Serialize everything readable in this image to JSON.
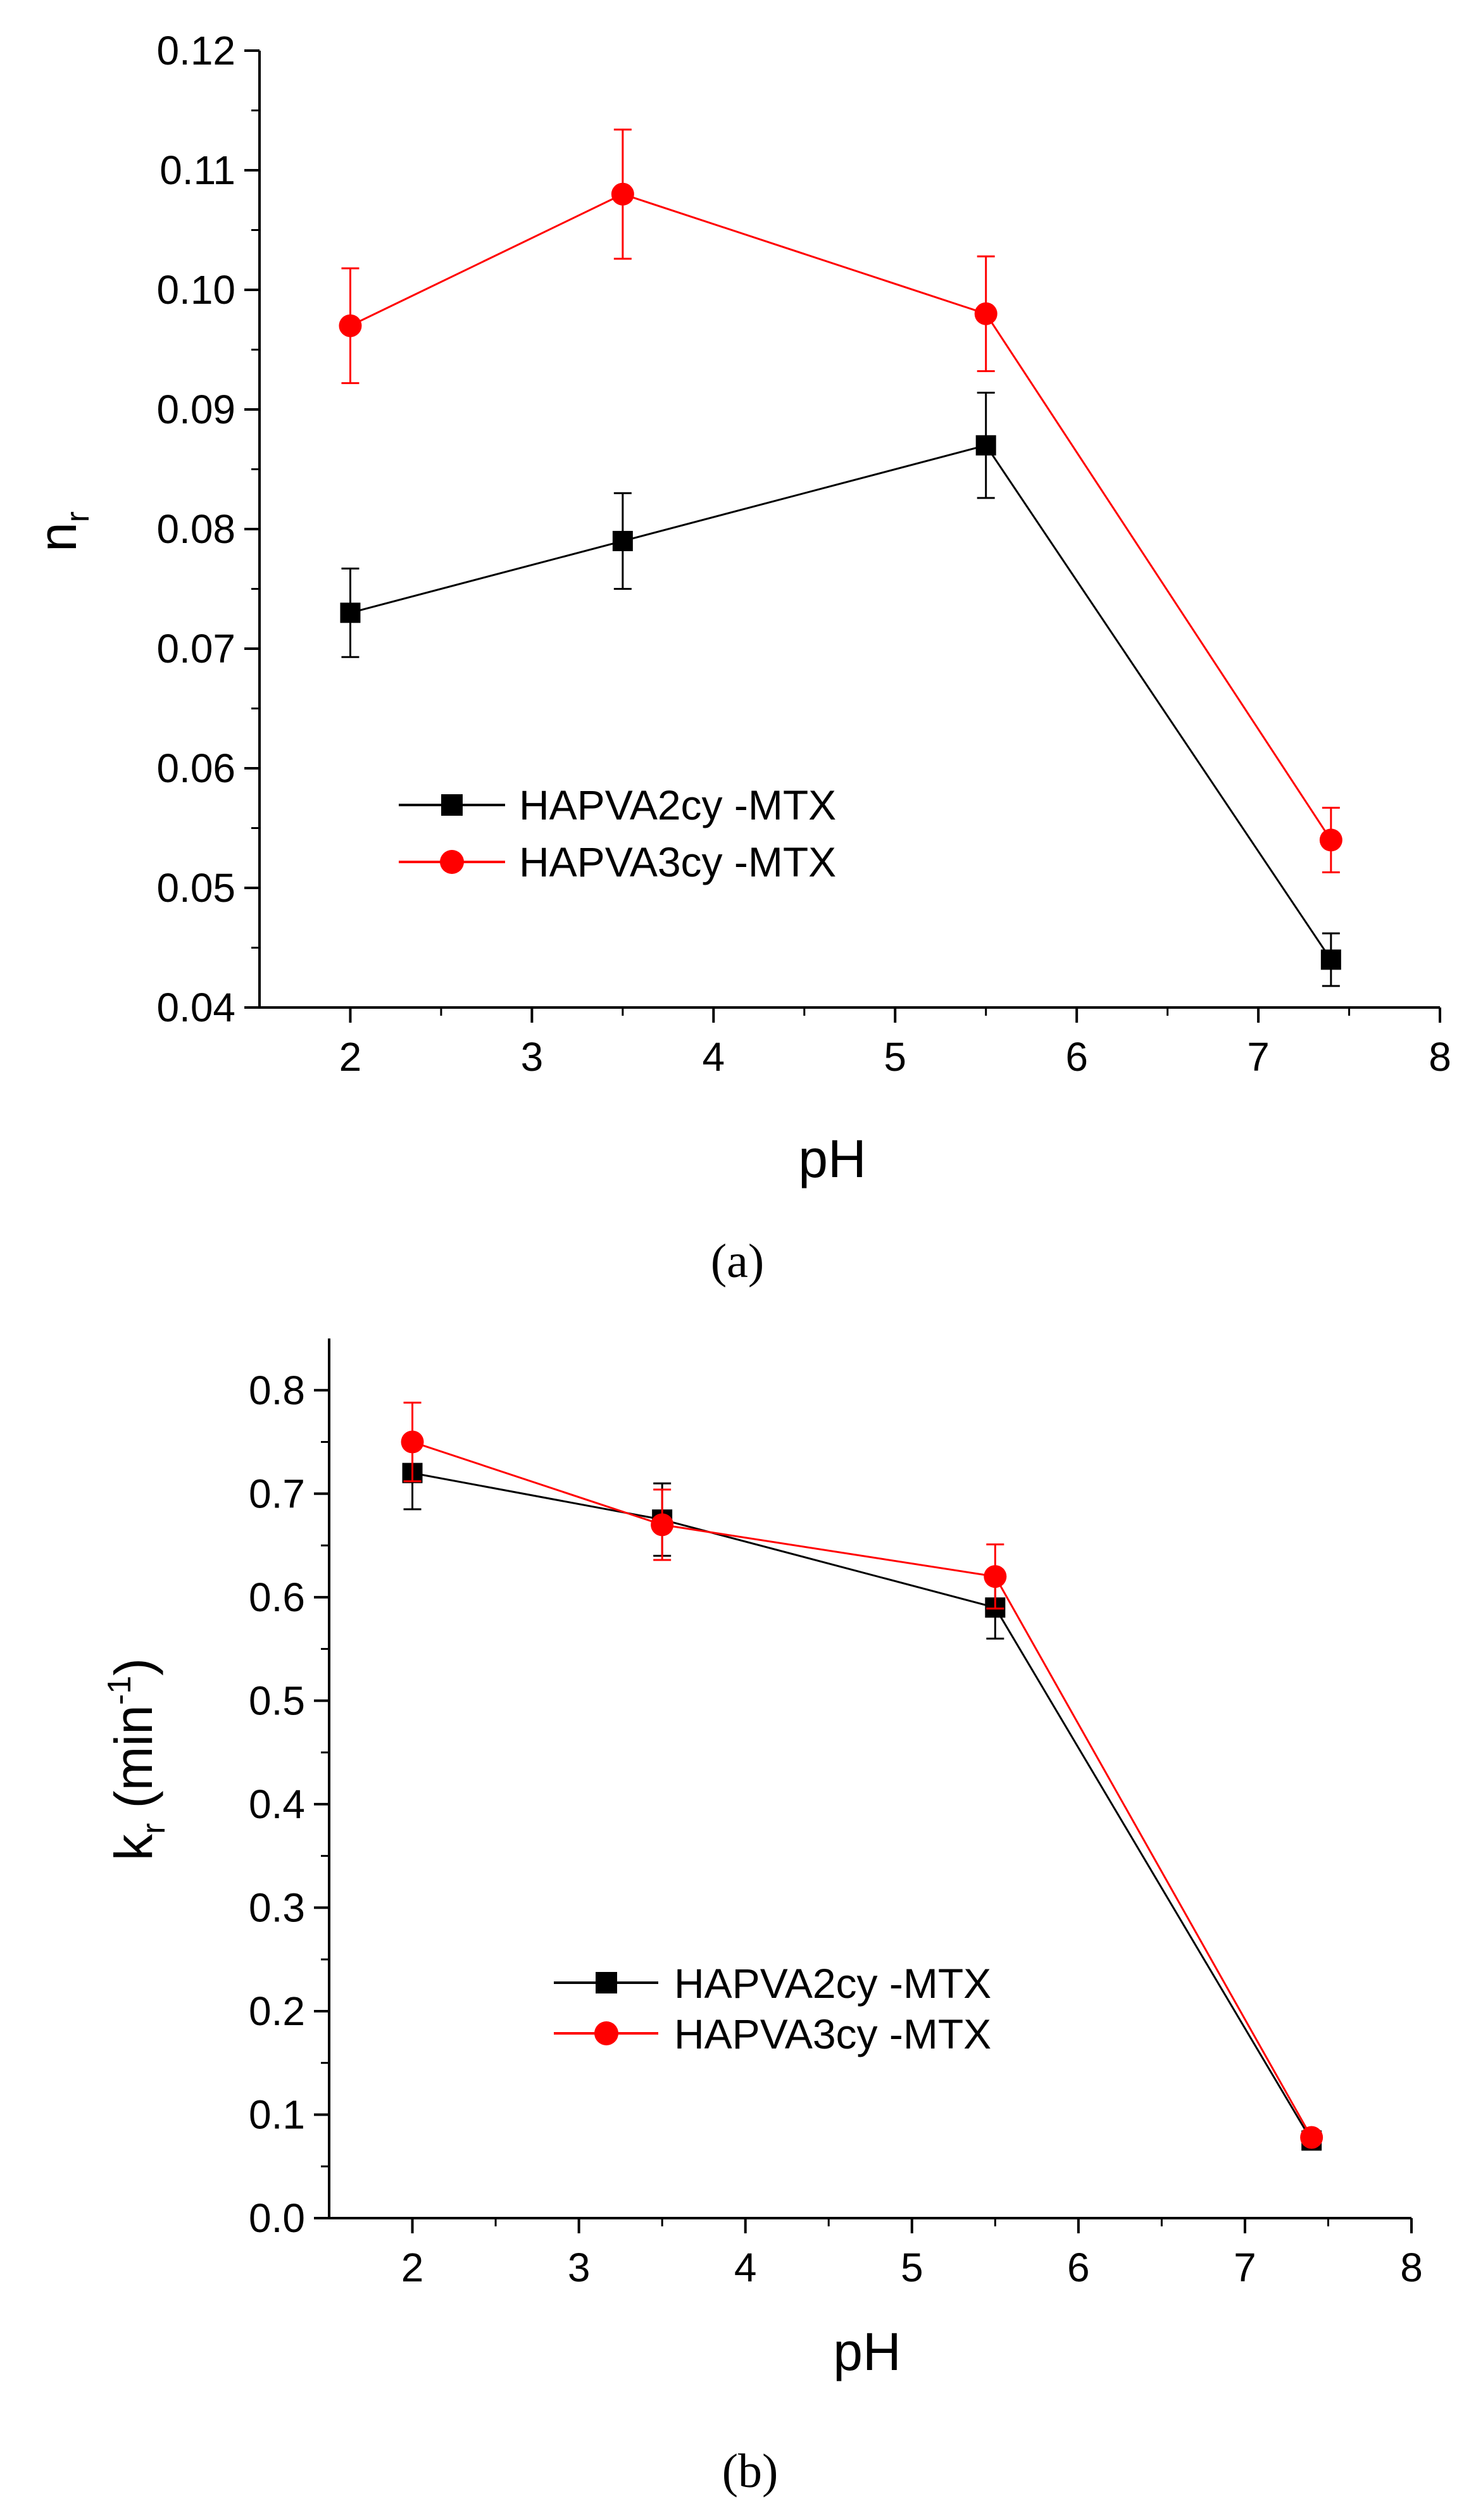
{
  "chart_data": [
    {
      "type": "line",
      "panel_label": "(a)",
      "xlabel": "pH",
      "ylabel": "n",
      "ylabel_sub": "r",
      "xlim": [
        1.5,
        8
      ],
      "ylim": [
        0.04,
        0.12
      ],
      "x_ticks": [
        "2",
        "3",
        "4",
        "5",
        "6",
        "7",
        "8"
      ],
      "y_ticks": [
        "0.04",
        "0.05",
        "0.06",
        "0.07",
        "0.08",
        "0.09",
        "0.10",
        "0.11",
        "0.12"
      ],
      "legend_position": "center-left",
      "series": [
        {
          "name": "HAPVA2cy -MTX",
          "color": "#000000",
          "marker": "square",
          "x": [
            2,
            3.5,
            5.5,
            7.4
          ],
          "y": [
            0.073,
            0.079,
            0.087,
            0.044
          ],
          "err": [
            0.0037,
            0.004,
            0.0044,
            0.0022
          ]
        },
        {
          "name": "HAPVA3cy -MTX",
          "color": "#ff0000",
          "marker": "circle",
          "x": [
            2,
            3.5,
            5.5,
            7.4
          ],
          "y": [
            0.097,
            0.108,
            0.098,
            0.054
          ],
          "err": [
            0.0048,
            0.0054,
            0.0048,
            0.0027
          ]
        }
      ]
    },
    {
      "type": "line",
      "panel_label": "(b)",
      "xlabel": "pH",
      "ylabel": "k",
      "ylabel_sub": "r",
      "ylabel_unit": " (min",
      "ylabel_sup": "-1",
      "ylabel_close": ")",
      "xlim": [
        1.5,
        8
      ],
      "ylim": [
        0.0,
        0.85
      ],
      "x_ticks": [
        "2",
        "3",
        "4",
        "5",
        "6",
        "7",
        "8"
      ],
      "y_ticks": [
        "0.0",
        "0.1",
        "0.2",
        "0.3",
        "0.4",
        "0.5",
        "0.6",
        "0.7",
        "0.8"
      ],
      "legend_position": "center-right",
      "series": [
        {
          "name": "HAPVA2cy -MTX",
          "color": "#000000",
          "marker": "square",
          "x": [
            2,
            3.5,
            5.5,
            7.4
          ],
          "y": [
            0.72,
            0.675,
            0.59,
            0.075
          ],
          "err": [
            0.035,
            0.035,
            0.03,
            0.004
          ]
        },
        {
          "name": "HAPVA3cy -MTX",
          "color": "#ff0000",
          "marker": "circle",
          "x": [
            2,
            3.5,
            5.5,
            7.4
          ],
          "y": [
            0.75,
            0.67,
            0.62,
            0.078
          ],
          "err": [
            0.038,
            0.034,
            0.031,
            0.004
          ]
        }
      ]
    }
  ]
}
